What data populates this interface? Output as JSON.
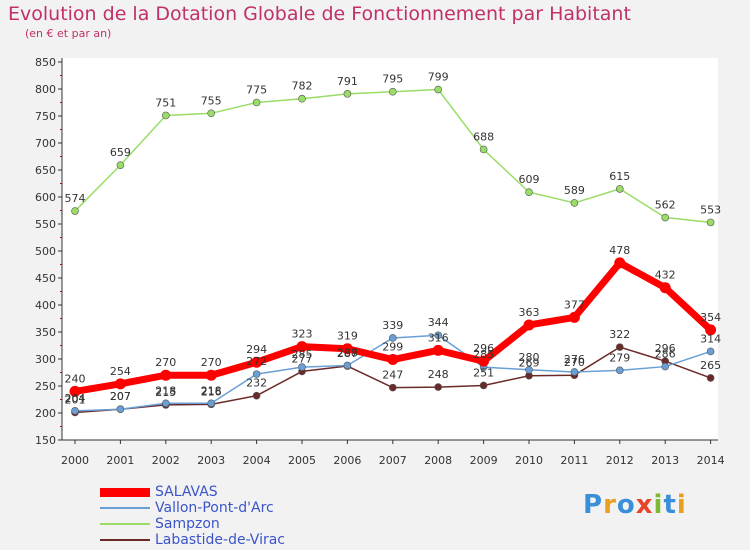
{
  "title": "Evolution de la Dotation Globale de Fonctionnement par Habitant",
  "subtitle": "(en € et par an)",
  "logo": "Proxiti",
  "chart_data": {
    "type": "line",
    "title": "Evolution de la Dotation Globale de Fonctionnement par Habitant",
    "subtitle": "(en € et par an)",
    "categories": [
      "2000",
      "2001",
      "2002",
      "2003",
      "2004",
      "2005",
      "2006",
      "2007",
      "2008",
      "2009",
      "2010",
      "2011",
      "2012",
      "2013",
      "2014"
    ],
    "ylim": [
      150,
      850
    ],
    "yticks": [
      150,
      200,
      250,
      300,
      350,
      400,
      450,
      500,
      550,
      600,
      650,
      700,
      750,
      800,
      850
    ],
    "grid": false,
    "legend_position": "bottom-left",
    "series": [
      {
        "name": "SALAVAS",
        "color": "#ff0000",
        "values": [
          240,
          254,
          270,
          270,
          294,
          323,
          319,
          299,
          316,
          296,
          363,
          377,
          478,
          432,
          354
        ]
      },
      {
        "name": "Vallon-Pont-d'Arc",
        "color": "#6a9fd6",
        "values": [
          204,
          207,
          218,
          218,
          272,
          285,
          288,
          339,
          344,
          285,
          280,
          276,
          279,
          286,
          314
        ]
      },
      {
        "name": "Sampzon",
        "color": "#99dd66",
        "values": [
          574,
          659,
          751,
          755,
          775,
          782,
          791,
          795,
          799,
          688,
          609,
          589,
          615,
          562,
          553
        ]
      },
      {
        "name": "Labastide-de-Virac",
        "color": "#6b2a2a",
        "values": [
          201,
          207,
          215,
          216,
          232,
          277,
          287,
          247,
          248,
          251,
          269,
          270,
          322,
          296,
          265
        ]
      }
    ]
  }
}
